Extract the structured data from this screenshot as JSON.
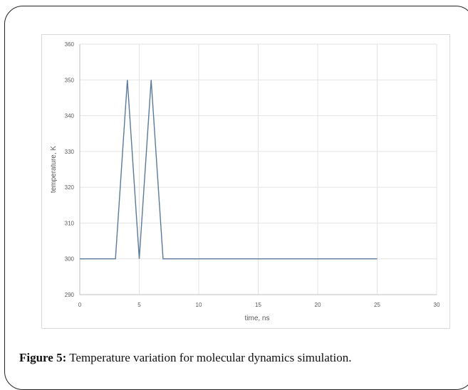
{
  "chart_data": {
    "type": "line",
    "title": "",
    "xlabel": "time, ns",
    "ylabel": "temperature, K",
    "xlim": [
      0,
      30
    ],
    "ylim": [
      290,
      360
    ],
    "xticks": [
      "0",
      "5",
      "10",
      "15",
      "20",
      "25",
      "30"
    ],
    "yticks": [
      "290",
      "300",
      "310",
      "320",
      "330",
      "340",
      "350",
      "360"
    ],
    "grid": true,
    "legend": "none",
    "series": [
      {
        "color": "#5b7a99",
        "x": [
          0,
          3,
          4,
          5,
          6,
          7,
          25
        ],
        "y": [
          300,
          300,
          350,
          300,
          350,
          300,
          300
        ]
      }
    ]
  },
  "caption": {
    "label": "Figure 5:",
    "text": " Temperature variation for molecular dynamics simulation."
  }
}
